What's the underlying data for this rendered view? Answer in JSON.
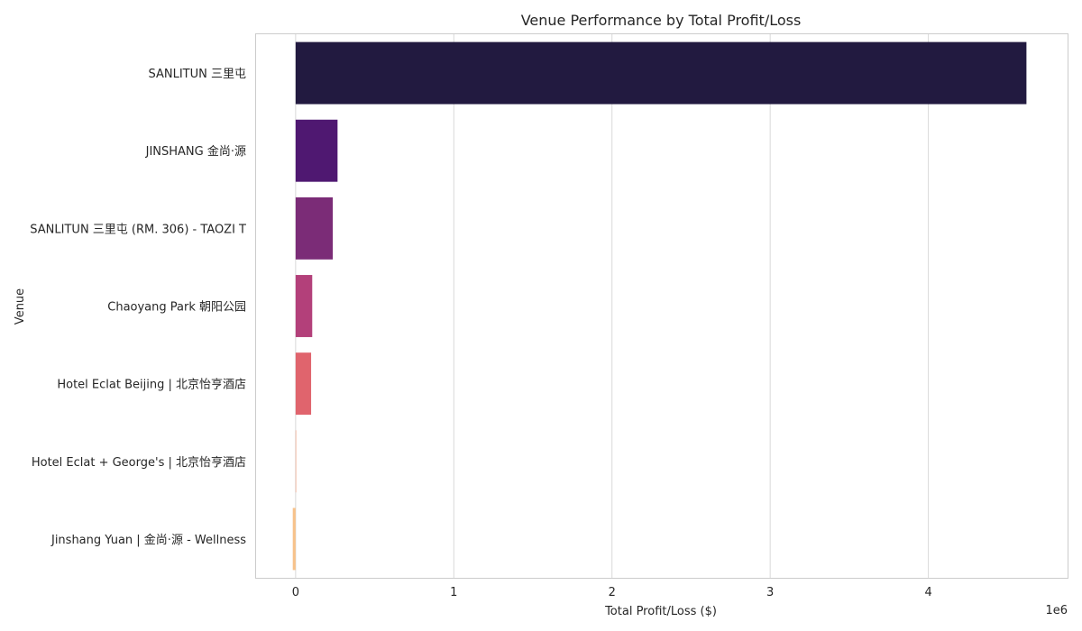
{
  "chart_data": {
    "type": "bar",
    "orientation": "horizontal",
    "title": "Venue Performance by Total Profit/Loss",
    "xlabel": "Total Profit/Loss ($)",
    "ylabel": "Venue",
    "x_scale_label": "1e6",
    "xlim": [
      -250000,
      4880000
    ],
    "xticks": [
      0,
      1000000,
      2000000,
      3000000,
      4000000
    ],
    "xtick_labels": [
      "0",
      "1",
      "2",
      "3",
      "4"
    ],
    "grid": true,
    "categories": [
      "SANLITUN 三里屯",
      "JINSHANG 金尚·源",
      "SANLITUN 三里屯 (RM. 306) - TAOZI T",
      "Chaoyang Park 朝阳公园",
      "Hotel Eclat Beijing | 北京怡亨酒店",
      "Hotel Eclat + George's | 北京怡亨酒店",
      "Jinshang Yuan | 金尚·源 - Wellness"
    ],
    "values": [
      4620000,
      265000,
      235000,
      105000,
      98000,
      0,
      -18000
    ],
    "colors": [
      "#221a40",
      "#4f1871",
      "#7b2c77",
      "#b3407a",
      "#e0646d",
      "#f7926a",
      "#f7c28b"
    ]
  }
}
